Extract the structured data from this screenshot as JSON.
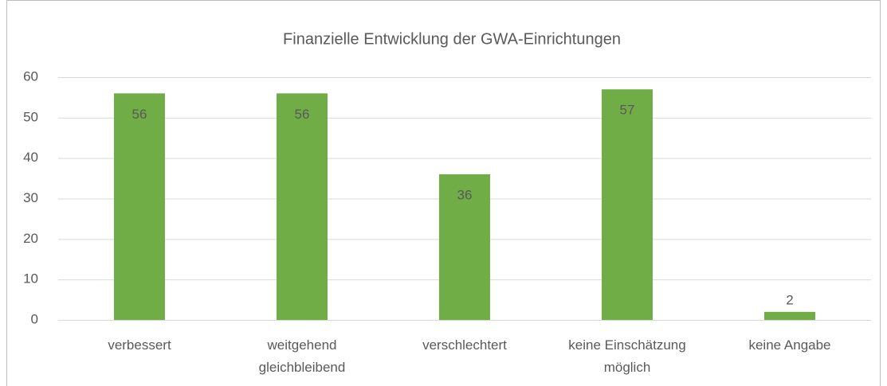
{
  "chart_data": {
    "type": "bar",
    "title": "Finanzielle Entwicklung der GWA-Einrichtungen",
    "categories": [
      "verbessert",
      "weitgehend gleichbleibend",
      "verschlechtert",
      "keine Einschätzung möglich",
      "keine Angabe"
    ],
    "values": [
      56,
      56,
      36,
      57,
      2
    ],
    "color": "#70ad47",
    "ylim": [
      0,
      60
    ],
    "yticks": [
      0,
      10,
      20,
      30,
      40,
      50,
      60
    ],
    "grid": true
  }
}
